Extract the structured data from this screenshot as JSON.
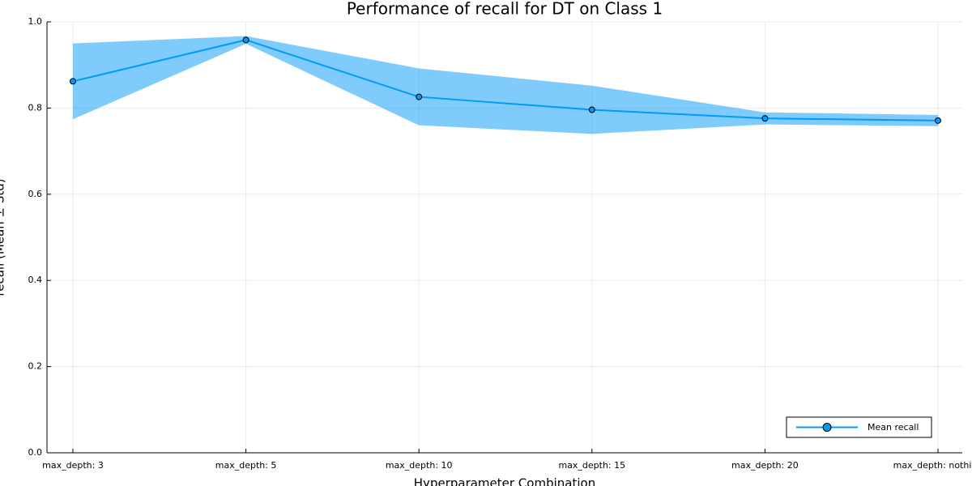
{
  "chart_data": {
    "type": "line",
    "title": "Performance of recall for DT on Class 1",
    "xlabel": "Hyperparameter Combination",
    "ylabel": "recall (Mean ± Std)",
    "categories": [
      "max_depth: 3",
      "max_depth: 5",
      "max_depth: 10",
      "max_depth: 15",
      "max_depth: 20",
      "max_depth: nothing"
    ],
    "series": [
      {
        "name": "Mean recall",
        "color": "#009af9",
        "values": [
          0.862,
          0.958,
          0.826,
          0.796,
          0.776,
          0.771
        ],
        "errors": [
          0.088,
          0.009,
          0.066,
          0.056,
          0.014,
          0.013
        ]
      }
    ],
    "ylim": [
      0,
      1
    ],
    "yticks": [
      {
        "value": 0,
        "label": "0.0"
      },
      0.2,
      0.4,
      0.6,
      0.8,
      {
        "value": 1,
        "label": "1.0"
      }
    ],
    "grid": true,
    "legend": "lower right"
  }
}
